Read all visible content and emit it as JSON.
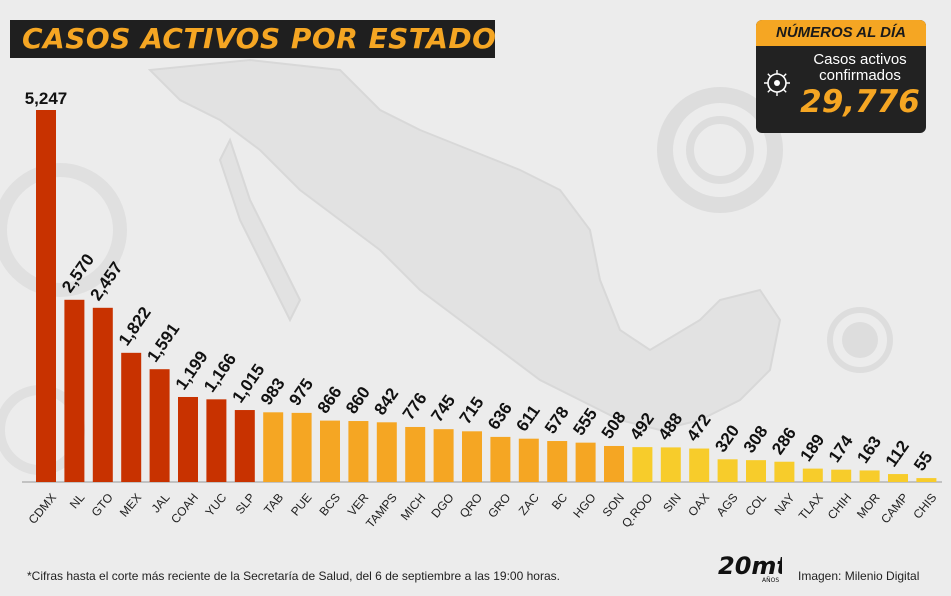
{
  "header": {
    "title": "CASOS ACTIVOS POR ESTADO"
  },
  "stat_box": {
    "heading": "NÚMEROS AL DÍA",
    "label": "Casos activos confirmados",
    "value": "29,776",
    "icon": "virus-icon"
  },
  "footer": {
    "note": "*Cifras hasta el corte más reciente de la Secretaría de Salud, del 6 de septiembre a las 19:00 horas.",
    "credit": "Imagen: Milenio Digital",
    "logo_text": "20mt",
    "logo_sub": "AÑOS"
  },
  "colors": {
    "top": "#c83200",
    "mid": "#f5a623",
    "low": "#f7cc2b",
    "accent": "#f5a623",
    "dark": "#1f1f1f"
  },
  "chart_data": {
    "type": "bar",
    "title": "CASOS ACTIVOS POR ESTADO",
    "xlabel": "",
    "ylabel": "",
    "ylim": [
      0,
      5247
    ],
    "grid": false,
    "categories": [
      "CDMX",
      "NL",
      "GTO",
      "MEX",
      "JAL",
      "COAH",
      "YUC",
      "SLP",
      "TAB",
      "PUE",
      "BCS",
      "VER",
      "TAMPS",
      "MICH",
      "DGO",
      "QRO",
      "GRO",
      "ZAC",
      "BC",
      "HGO",
      "SON",
      "Q.ROO",
      "SIN",
      "OAX",
      "AGS",
      "COL",
      "NAY",
      "TLAX",
      "CHIH",
      "MOR",
      "CAMP",
      "CHIS"
    ],
    "values": [
      5247,
      2570,
      2457,
      1822,
      1591,
      1199,
      1166,
      1015,
      983,
      975,
      866,
      860,
      842,
      776,
      745,
      715,
      636,
      611,
      578,
      555,
      508,
      492,
      488,
      472,
      320,
      308,
      286,
      189,
      174,
      163,
      112,
      55
    ],
    "labels": [
      "5,247",
      "2,570",
      "2,457",
      "1,822",
      "1,591",
      "1,199",
      "1,166",
      "1,015",
      "983",
      "975",
      "866",
      "860",
      "842",
      "776",
      "745",
      "715",
      "636",
      "611",
      "578",
      "555",
      "508",
      "492",
      "488",
      "472",
      "320",
      "308",
      "286",
      "189",
      "174",
      "163",
      "112",
      "55"
    ]
  }
}
